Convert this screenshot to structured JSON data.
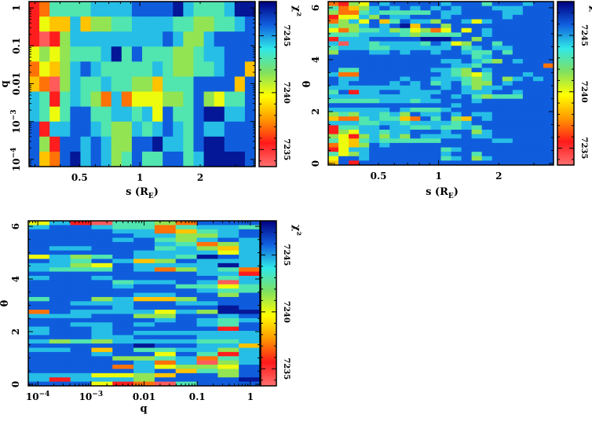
{
  "colorbar": {
    "label": "χ²",
    "range": [
      7233.5,
      7248
    ],
    "ticks": [
      7235,
      7240,
      7245
    ],
    "tick_labels": [
      "7235",
      "7240",
      "7245"
    ],
    "colormap": [
      "#ff7070",
      "#ff1a1a",
      "#ff9900",
      "#ffff00",
      "#80e060",
      "#30e8e8",
      "#1060e0",
      "#000080"
    ]
  },
  "encoding": {
    "description_of_levels": "level digit c maps to chi2 = 7234 + 1.5*c",
    "base": 7234,
    "step": 1.5
  },
  "chart_data": [
    {
      "type": "heatmap",
      "title": "",
      "xlabel": "s (R",
      "xlabel_sub": "E",
      "xlabel_close": ")",
      "ylabel": "q",
      "xscale": "log",
      "yscale": "log",
      "xlim": [
        0.28,
        3.76
      ],
      "ylim": [
        6.46e-05,
        1.47
      ],
      "xticks": [
        {
          "v": 0.5,
          "label": "0.5"
        },
        {
          "v": 1,
          "label": "1"
        },
        {
          "v": 2,
          "label": "2"
        }
      ],
      "yticks": [
        {
          "v": 0.0001,
          "label": "10",
          "exp": "−4"
        },
        {
          "v": 0.001,
          "label": "10",
          "exp": "−3"
        },
        {
          "v": 0.01,
          "label": "0.01"
        },
        {
          "v": 0.1,
          "label": "0.1"
        },
        {
          "v": 1,
          "label": "1"
        }
      ],
      "z_rows_top_to_bottom": [
        "1266667777888897666799",
        "1433735566777766556678",
        "1015777777777875578888",
        "4545666796866655677888",
        "2435787666667655667883",
        "3205766766553666888838",
        "7616765272444556854668",
        "7646886677674866899778",
        "8177887655767876877888",
        "8518878755889776899888",
        "8328978756866886799998"
      ]
    },
    {
      "type": "heatmap",
      "title": "",
      "xlabel": "s (R",
      "xlabel_sub": "E",
      "xlabel_close": ")",
      "ylabel": "θ",
      "xscale": "log",
      "yscale": "linear",
      "xlim": [
        0.28,
        3.76
      ],
      "ylim": [
        -0.06,
        6.24
      ],
      "xticks": [
        {
          "v": 0.5,
          "label": "0.5"
        },
        {
          "v": 1,
          "label": "1"
        },
        {
          "v": 2,
          "label": "2"
        }
      ],
      "yticks": [
        {
          "v": 0,
          "label": "0"
        },
        {
          "v": 2,
          "label": "2"
        },
        {
          "v": 4,
          "label": "4"
        },
        {
          "v": 6,
          "label": "6"
        }
      ],
      "z_rows_top_to_bottom": [
        "2154878888878886888788",
        "6235787878787888777888",
        "5226766666877888877888",
        "1447587788878888878888",
        "2574836877588747888888",
        "6557878938858888888888",
        "4256675645248487888888",
        "6667777656666887888888",
        "1777888889998858888888",
        "7077677776874588688888",
        "6777667777778678778888",
        "5888778788788766868888",
        "8888888888888867888888",
        "8888888888877876587888",
        "8888888888887768888882",
        "8668888888776587888888",
        "7228888888876546888788",
        "8778888788777656857878",
        "8788887878678655878888",
        "7777777778878757788888",
        "6817788777788777887888",
        "7777777777887865666888",
        "6666677767788878888888",
        "8888888888887888888888",
        "7777778766678888888888",
        "5657767587787877888888",
        "3226766328685387888888",
        "7776677677776788888888",
        "1667787766766768888888",
        "1547767788878857888888",
        "5415757587777877888888",
        "6436766666688888778888",
        "2435878888888888888888",
        "1477888888867888888888",
        "6457888888878868888888",
        "4887888888867857888888",
        "3818888888888888888888"
      ]
    },
    {
      "type": "heatmap",
      "title": "",
      "xlabel": "q",
      "ylabel": "θ",
      "xscale": "log",
      "yscale": "linear",
      "xlim": [
        6.61e-05,
        1.51
      ],
      "ylim": [
        -0.06,
        6.21
      ],
      "xticks": [
        {
          "v": 0.0001,
          "label": "10",
          "exp": "−4"
        },
        {
          "v": 0.001,
          "label": "10",
          "exp": "−3"
        },
        {
          "v": 0.01,
          "label": "0.01"
        },
        {
          "v": 0.1,
          "label": "0.1"
        },
        {
          "v": 1,
          "label": "1"
        }
      ],
      "yticks": [
        {
          "v": 0,
          "label": "0"
        },
        {
          "v": 2,
          "label": "2"
        },
        {
          "v": 4,
          "label": "4"
        },
        {
          "v": 6,
          "label": "6"
        }
      ],
      "z_rows_top_to_bottom": [
        "47106652888",
        "78876626776",
        "88887723678",
        "88888775578",
        "88887865787",
        "88888876257",
        "87788867537",
        "88888777747",
        "47568776987",
        "87687358777",
        "77548777797",
        "76668725762",
        "88888888771",
        "78878888867",
        "88886778707",
        "88887886646",
        "88888888766",
        "88888778858",
        "68857335888",
        "88777887788",
        "88887888898",
        "28777747599",
        "77788558878",
        "88888878767",
        "88778788768",
        "78878888818",
        "78878777777",
        "88877888777",
        "75657777667",
        "88888988773",
        "77838667757",
        "88878848617",
        "88885567267",
        "88888727057",
        "88882745548",
        "88888783658",
        "77744538858",
        "71777588889",
        "88841206888"
      ]
    }
  ]
}
